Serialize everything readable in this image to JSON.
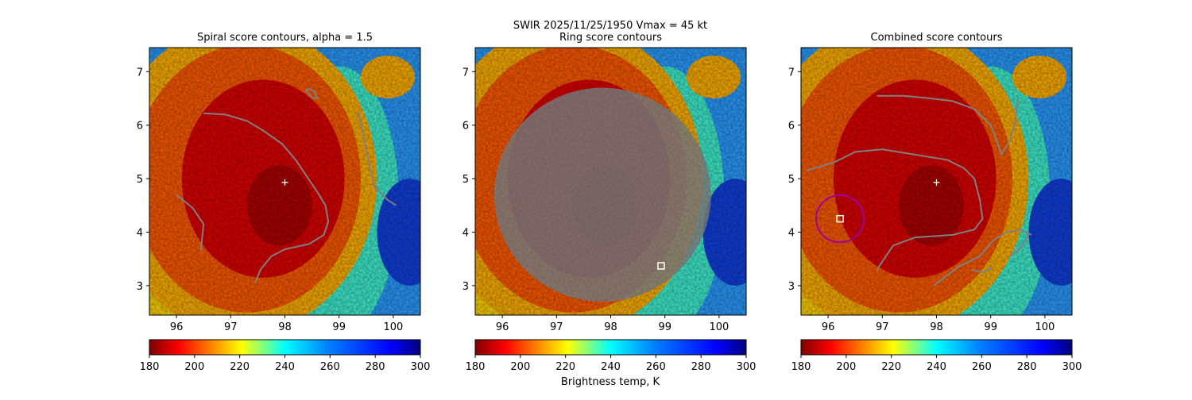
{
  "chart_data": {
    "type": "heatmap",
    "suptitle_line1": "SWIR  2025/11/25/1950    Vmax = 45 kt",
    "colorbar_label": "Brightness temp, K",
    "colormap": "jet_r",
    "colorbar_range": [
      180,
      300
    ],
    "colorbar_ticks": [
      "180",
      "200",
      "220",
      "240",
      "260",
      "280",
      "300"
    ],
    "xlim": [
      95.5,
      100.5
    ],
    "ylim": [
      2.45,
      7.45
    ],
    "x_ticks": [
      "96",
      "97",
      "98",
      "99",
      "100"
    ],
    "x_tick_values": [
      96,
      97,
      98,
      99,
      100
    ],
    "y_ticks": [
      "3",
      "4",
      "5",
      "6",
      "7"
    ],
    "y_tick_values": [
      3,
      4,
      5,
      6,
      7
    ],
    "contour_color": "#808080",
    "panels": [
      {
        "title": "Spiral score contours, alpha =  1.5",
        "center_marker": {
          "symbol": "+",
          "lon": 98.0,
          "lat": 4.93,
          "color": "#ffffff"
        },
        "contours": [
          [
            [
              96.5,
              6.22
            ],
            [
              96.9,
              6.2
            ],
            [
              97.3,
              6.08
            ],
            [
              97.6,
              5.9
            ],
            [
              97.95,
              5.65
            ],
            [
              98.2,
              5.35
            ],
            [
              98.4,
              5.05
            ],
            [
              98.6,
              4.75
            ],
            [
              98.75,
              4.5
            ],
            [
              98.8,
              4.2
            ],
            [
              98.72,
              3.95
            ],
            [
              98.45,
              3.78
            ],
            [
              98.0,
              3.68
            ],
            [
              97.75,
              3.55
            ],
            [
              97.55,
              3.3
            ],
            [
              97.45,
              3.05
            ]
          ],
          [
            [
              96.0,
              4.7
            ],
            [
              96.3,
              4.45
            ],
            [
              96.5,
              4.15
            ],
            [
              96.45,
              3.65
            ]
          ],
          [
            [
              99.35,
              6.25
            ],
            [
              99.45,
              5.8
            ],
            [
              99.55,
              5.3
            ],
            [
              99.65,
              4.85
            ],
            [
              99.9,
              4.6
            ],
            [
              100.05,
              4.5
            ]
          ],
          [
            [
              98.38,
              6.65
            ],
            [
              98.5,
              6.52
            ],
            [
              98.6,
              6.5
            ],
            [
              98.55,
              6.62
            ],
            [
              98.45,
              6.68
            ],
            [
              98.38,
              6.65
            ]
          ]
        ],
        "markers": []
      },
      {
        "title": "Ring score contours",
        "center_marker": null,
        "ring_region": {
          "center_lon": 97.85,
          "center_lat": 4.7,
          "radius_deg": 2.0,
          "fill_fraction": 0.85
        },
        "markers": [
          {
            "symbol": "square",
            "lon": 98.93,
            "lat": 3.37,
            "color": "#ffffff"
          }
        ],
        "contours": []
      },
      {
        "title": "Combined score contours",
        "center_marker": {
          "symbol": "+",
          "lon": 98.0,
          "lat": 4.93,
          "color": "#ffffff"
        },
        "contours": [
          [
            [
              96.9,
              6.55
            ],
            [
              97.4,
              6.55
            ],
            [
              97.9,
              6.5
            ],
            [
              98.3,
              6.45
            ],
            [
              98.7,
              6.3
            ],
            [
              99.0,
              6.0
            ],
            [
              99.1,
              5.75
            ],
            [
              99.2,
              5.45
            ],
            [
              99.35,
              5.7
            ],
            [
              99.45,
              6.05
            ],
            [
              99.5,
              6.5
            ]
          ],
          [
            [
              95.6,
              5.15
            ],
            [
              96.1,
              5.3
            ],
            [
              96.5,
              5.5
            ],
            [
              97.0,
              5.55
            ],
            [
              97.6,
              5.45
            ],
            [
              98.2,
              5.35
            ],
            [
              98.5,
              5.2
            ],
            [
              98.7,
              5.0
            ],
            [
              98.8,
              4.6
            ],
            [
              98.85,
              4.25
            ],
            [
              98.7,
              4.05
            ],
            [
              98.3,
              3.95
            ],
            [
              97.6,
              3.9
            ],
            [
              97.2,
              3.75
            ],
            [
              96.9,
              3.3
            ]
          ],
          [
            [
              97.95,
              3.0
            ],
            [
              98.4,
              3.35
            ],
            [
              98.8,
              3.55
            ],
            [
              99.05,
              3.85
            ],
            [
              99.3,
              4.0
            ],
            [
              99.55,
              4.05
            ],
            [
              99.75,
              3.95
            ]
          ],
          [
            [
              98.65,
              3.3
            ],
            [
              98.85,
              3.25
            ],
            [
              99.05,
              3.35
            ]
          ],
          [
            [
              99.35,
              3.55
            ],
            [
              99.55,
              3.7
            ],
            [
              99.7,
              3.95
            ]
          ]
        ],
        "circle": {
          "lon": 96.22,
          "lat": 4.25,
          "radius_deg": 0.44,
          "color": "#a000a0"
        },
        "markers": [
          {
            "symbol": "square",
            "lon": 96.22,
            "lat": 4.25,
            "color": "#ffffff"
          }
        ]
      }
    ]
  }
}
